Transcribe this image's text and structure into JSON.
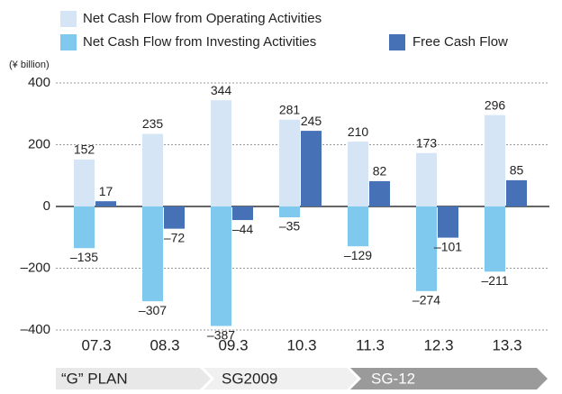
{
  "chart_data": {
    "type": "bar",
    "unit_label": "(¥ billion)",
    "categories": [
      "07.3",
      "08.3",
      "09.3",
      "10.3",
      "11.3",
      "12.3",
      "13.3"
    ],
    "series": [
      {
        "name": "Net Cash Flow from Operating Activities",
        "color": "#d5e5f6",
        "slot": "left",
        "values": [
          152,
          235,
          344,
          281,
          210,
          173,
          296
        ]
      },
      {
        "name": "Net Cash Flow from Investing Activities",
        "color": "#7fc8ee",
        "slot": "left",
        "values": [
          -135,
          -307,
          -387,
          -35,
          -129,
          -274,
          -211
        ],
        "value_labels": [
          "–135",
          "–307",
          "–387",
          "–35",
          "–129",
          "–274",
          "–211"
        ]
      },
      {
        "name": "Free Cash Flow",
        "color": "#4671b7",
        "slot": "right",
        "values": [
          17,
          -72,
          -44,
          245,
          82,
          -101,
          85
        ],
        "value_labels": [
          "17",
          "–72",
          "–44",
          "245",
          "82",
          "–101",
          "85"
        ]
      }
    ],
    "ylim": [
      -400,
      400
    ],
    "yticks": [
      {
        "value": -400,
        "label": "–400"
      },
      {
        "value": -200,
        "label": "–200"
      },
      0,
      200,
      400
    ],
    "grid": true,
    "phases": [
      "“G” PLAN",
      "SG2009",
      "SG-12"
    ]
  }
}
